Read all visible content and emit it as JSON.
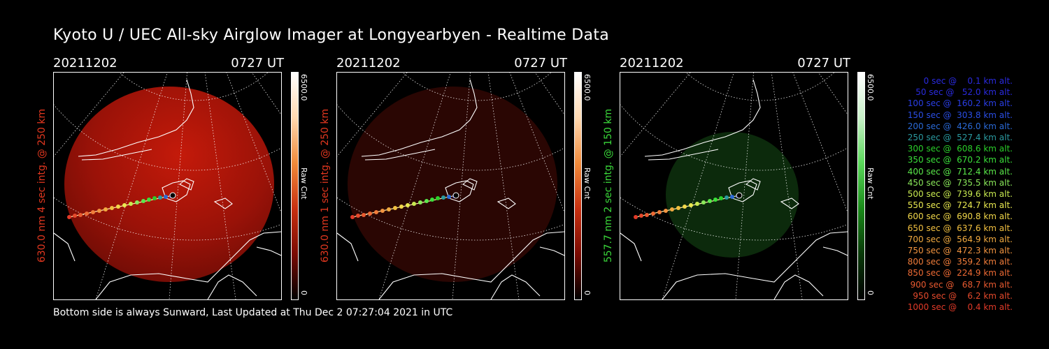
{
  "title": "Kyoto U / UEC All-sky Airglow Imager at Longyearbyen - Realtime Data",
  "footer": "Bottom side is always Sunward, Last Updated at Thu Dec  2 07:27:04 2021 in UTC",
  "panels": [
    {
      "date": "20211202",
      "time": "0727 UT",
      "ylabel": "630.0 nm 4 sec intg. @ 250 km",
      "ylabel_color": "#e2371f",
      "cbar_max": "6500.0",
      "cbar_min": "0",
      "cbar_label": "Raw Cnt",
      "glow": "bright-red"
    },
    {
      "date": "20211202",
      "time": "0727 UT",
      "ylabel": "630.0 nm 1 sec intg. @ 250 km",
      "ylabel_color": "#e2371f",
      "cbar_max": "6500.0",
      "cbar_min": "0",
      "cbar_label": "Raw Cnt",
      "glow": "dim-red"
    },
    {
      "date": "20211202",
      "time": "0727 UT",
      "ylabel": "557.7 nm 2 sec intg. @ 150 km",
      "ylabel_color": "#3ad83a",
      "cbar_max": "6500.0",
      "cbar_min": "0",
      "cbar_label": "Raw Cnt",
      "glow": "dim-green"
    }
  ],
  "legend": [
    {
      "text": "   0 sec @    0.1 km alt.",
      "color": "#2a2adf"
    },
    {
      "text": "  50 sec @   52.0 km alt.",
      "color": "#2a2adf"
    },
    {
      "text": " 100 sec @  160.2 km alt.",
      "color": "#2a3ee6"
    },
    {
      "text": " 150 sec @  303.8 km alt.",
      "color": "#2a4ee6"
    },
    {
      "text": " 200 sec @  426.0 km alt.",
      "color": "#2a6ad8"
    },
    {
      "text": " 250 sec @  527.4 km alt.",
      "color": "#2a9aa0"
    },
    {
      "text": " 300 sec @  608.6 km alt.",
      "color": "#2ad02a"
    },
    {
      "text": " 350 sec @  670.2 km alt.",
      "color": "#3ae03a"
    },
    {
      "text": " 400 sec @  712.4 km alt.",
      "color": "#5ae84a"
    },
    {
      "text": " 450 sec @  735.5 km alt.",
      "color": "#8ae85a"
    },
    {
      "text": " 500 sec @  739.6 km alt.",
      "color": "#c8ea50"
    },
    {
      "text": " 550 sec @  724.7 km alt.",
      "color": "#eaea50"
    },
    {
      "text": " 600 sec @  690.8 km alt.",
      "color": "#f2d84a"
    },
    {
      "text": " 650 sec @  637.6 km alt.",
      "color": "#f2c040"
    },
    {
      "text": " 700 sec @  564.9 km alt.",
      "color": "#f2aa40"
    },
    {
      "text": " 750 sec @  472.3 km alt.",
      "color": "#f29440"
    },
    {
      "text": " 800 sec @  359.2 km alt.",
      "color": "#f07c3a"
    },
    {
      "text": " 850 sec @  224.9 km alt.",
      "color": "#ee6a34"
    },
    {
      "text": " 900 sec @   68.7 km alt.",
      "color": "#ea5a30"
    },
    {
      "text": " 950 sec @    6.2 km alt.",
      "color": "#e64a2c"
    },
    {
      "text": "1000 sec @    0.4 km alt.",
      "color": "#e23a28"
    }
  ]
}
